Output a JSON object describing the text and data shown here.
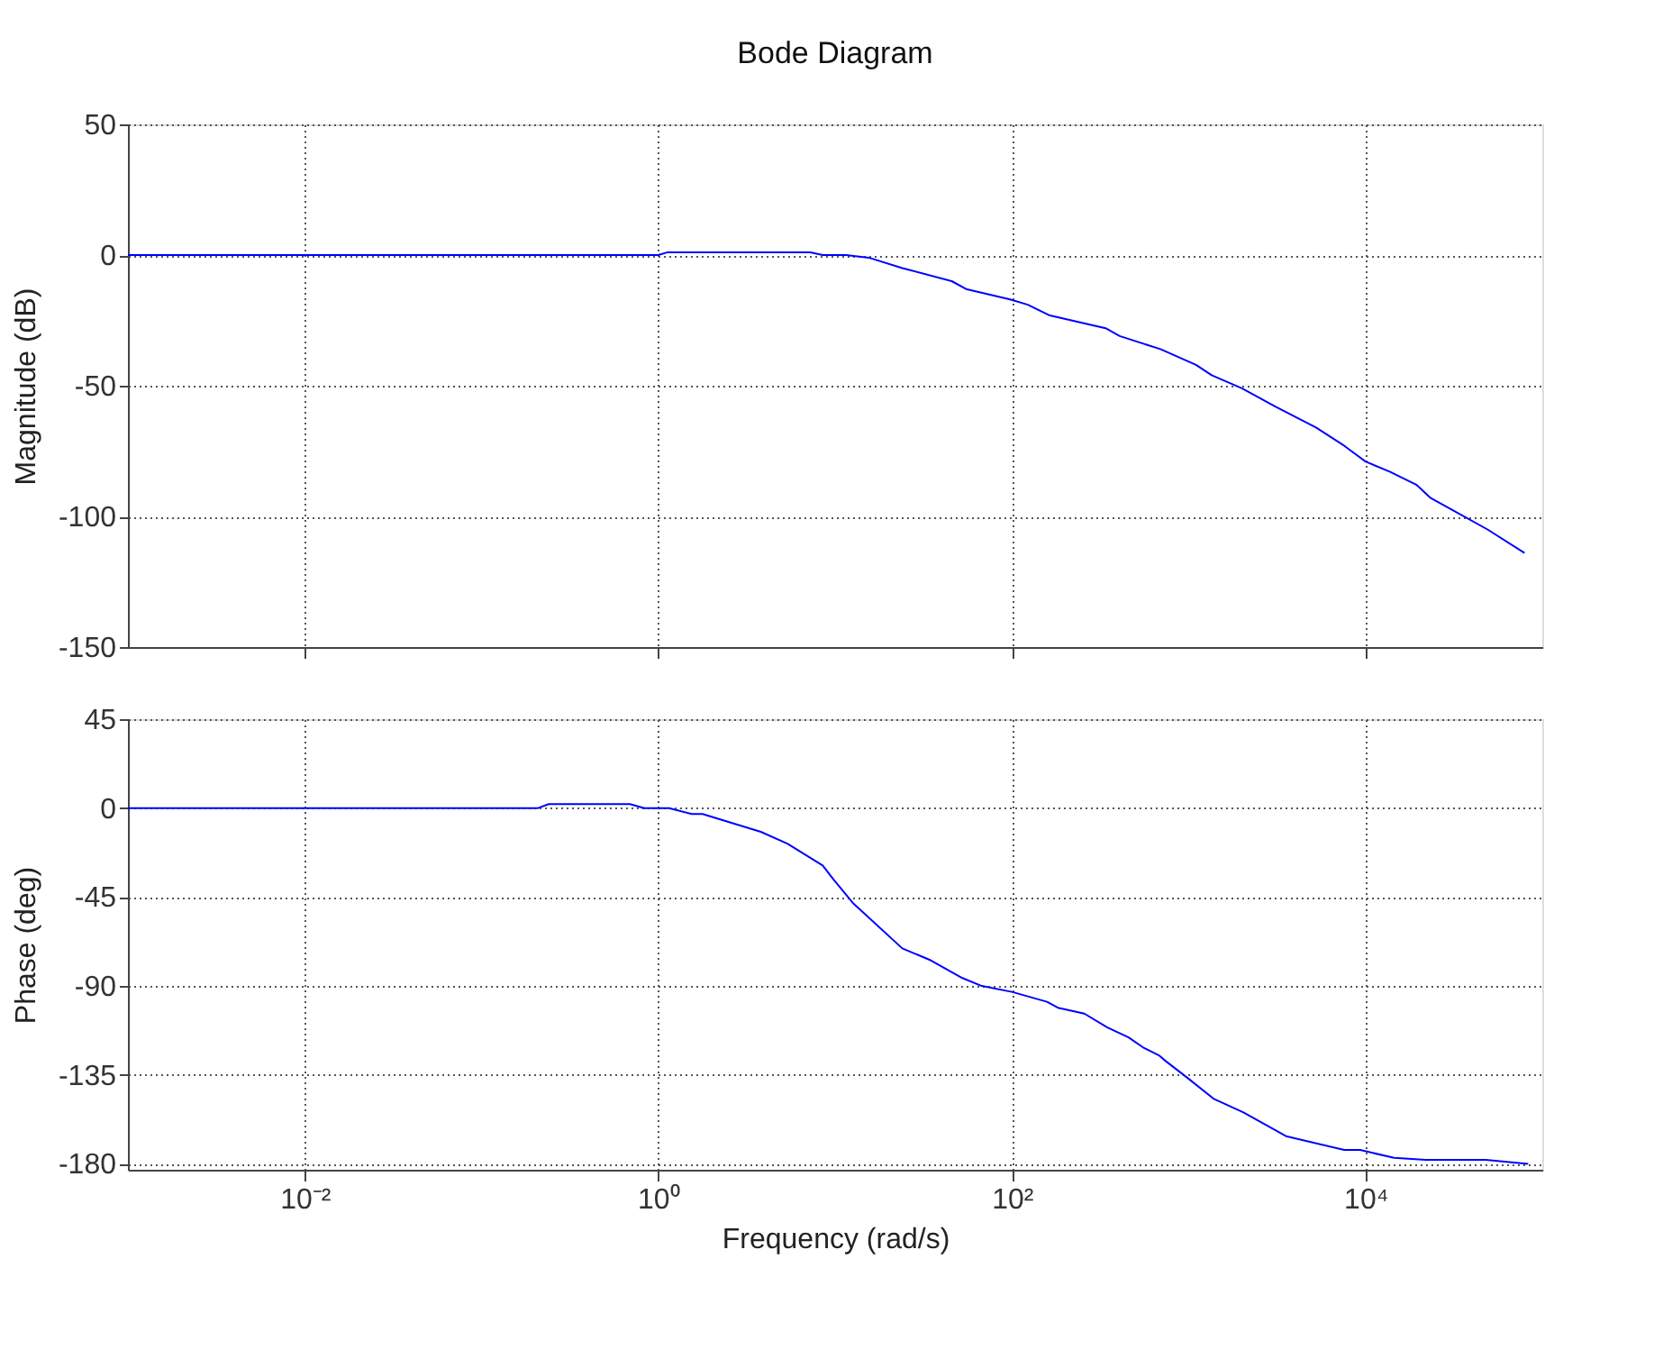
{
  "chart_data": [
    {
      "type": "line",
      "title": "Bode Diagram",
      "ylabel": "Magnitude (dB)",
      "log": "x",
      "grid": true,
      "tick_labels": "y",
      "xlim": [
        0.001,
        100000
      ],
      "xticks": [
        0.01,
        1,
        100,
        10000
      ],
      "ylim": [
        -150,
        50
      ],
      "yticks": [
        -150,
        -100,
        -50,
        0,
        50
      ],
      "series": [
        {
          "color": "#0000ff",
          "x": [
            0.001,
            1,
            1.12,
            7.24,
            8.51,
            11.5,
            15.5,
            24,
            45.7,
            55,
            97.7,
            123,
            162,
            339,
            407,
            692,
            1100,
            1350,
            2000,
            3090,
            5250,
            7590,
            10000,
            13800,
            19500,
            23400,
            33900,
            49000,
            79400
          ],
          "values": [
            0,
            0,
            1,
            1,
            0,
            0,
            -1,
            -5,
            -10,
            -13,
            -17,
            -19,
            -23,
            -28,
            -31,
            -36,
            -42,
            -46,
            -51,
            -58,
            -66,
            -73,
            -79,
            -83,
            -88,
            -93,
            -99,
            -105,
            -114
          ]
        }
      ]
    },
    {
      "type": "line",
      "xlabel": "Frequency  (rad/s)",
      "ylabel": "Phase (deg)",
      "log": "x",
      "grid": true,
      "xlim": [
        0.001,
        100000
      ],
      "xticks": [
        {
          "value": 0.01,
          "label": "10⁻²"
        },
        {
          "value": 1,
          "label": "10⁰"
        },
        {
          "value": 100,
          "label": "10²"
        },
        {
          "value": 10000,
          "label": "10⁴"
        }
      ],
      "ylim": [
        -183,
        45
      ],
      "yticks": [
        -180,
        -135,
        -90,
        -45,
        0,
        45
      ],
      "series": [
        {
          "color": "#0000ff",
          "x": [
            0.001,
            0.209,
            0.24,
            0.692,
            0.832,
            1.15,
            1.55,
            1.78,
            3.8,
            5.37,
            8.51,
            9.77,
            12.6,
            24,
            34.7,
            52.5,
            67.6,
            100,
            158,
            182,
            257,
            347,
            457,
            550,
            676,
            741,
            1000,
            1380,
            2040,
            3550,
            7590,
            9330,
            14500,
            21900,
            47900,
            83200
          ],
          "values": [
            0,
            0,
            2,
            2,
            0,
            0,
            -3,
            -3,
            -12,
            -18,
            -29,
            -36,
            -48,
            -71,
            -77,
            -86,
            -90,
            -93,
            -98,
            -101,
            -104,
            -111,
            -116,
            -121,
            -125,
            -128,
            -137,
            -147,
            -154,
            -166,
            -173,
            -173,
            -177,
            -178,
            -178,
            -180
          ]
        }
      ]
    }
  ]
}
